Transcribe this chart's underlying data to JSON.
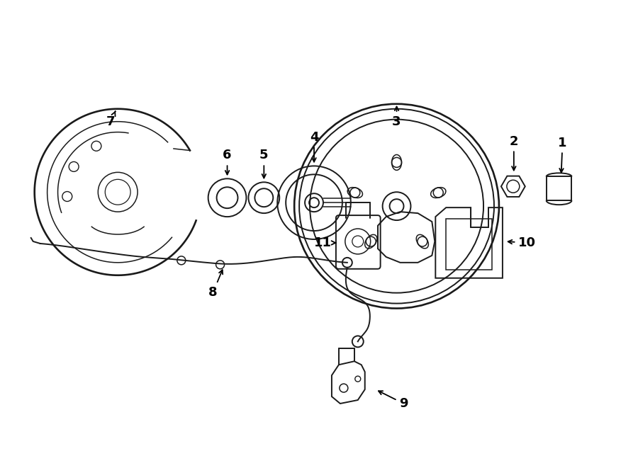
{
  "bg_color": "#ffffff",
  "line_color": "#1a1a1a",
  "lw": 1.4,
  "fig_width": 9.0,
  "fig_height": 6.61,
  "dpi": 100
}
